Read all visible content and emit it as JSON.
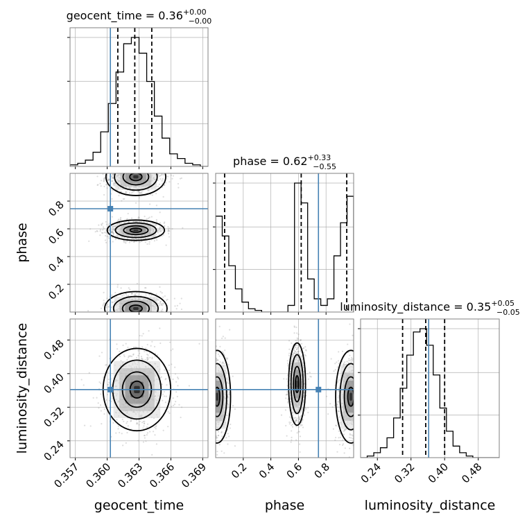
{
  "chart_data": {
    "type": "corner",
    "parameters": [
      {
        "key": "geocent_time",
        "label": "geocent_time",
        "title": {
          "prefix": "geocent_time = ",
          "median": "0.36",
          "plus": "+0.00",
          "minus": "−0.00"
        },
        "range": [
          0.3565,
          0.3695
        ],
        "ticks": [
          0.357,
          0.36,
          0.363,
          0.366,
          0.369
        ],
        "tick_labels": [
          "0.357",
          "0.360",
          "0.363",
          "0.366",
          "0.369"
        ],
        "truth": 0.3603,
        "quantiles": [
          0.361,
          0.3626,
          0.3642
        ],
        "hist_counts": [
          1,
          2,
          4,
          9,
          22,
          40,
          60,
          78,
          82,
          72,
          54,
          32,
          18,
          8,
          5,
          2,
          1,
          0
        ]
      },
      {
        "key": "phase",
        "label": "phase",
        "title": {
          "prefix": "phase = ",
          "median": "0.62",
          "plus": "+0.33",
          "minus": "−0.55"
        },
        "range": [
          0.0,
          1.0
        ],
        "ticks": [
          0.2,
          0.4,
          0.6,
          0.8
        ],
        "tick_labels": [
          "0.2",
          "0.4",
          "0.6",
          "0.8"
        ],
        "truth": 0.745,
        "quantiles": [
          0.065,
          0.62,
          0.95
        ],
        "hist_counts": [
          58,
          46,
          28,
          14,
          6,
          2,
          1,
          0,
          0,
          0,
          0,
          4,
          78,
          66,
          20,
          8,
          4,
          8,
          34,
          54,
          70
        ]
      },
      {
        "key": "luminosity_distance",
        "label": "luminosity_distance",
        "title": {
          "prefix": "luminosity_distance = ",
          "median": "0.35",
          "plus": "+0.05",
          "minus": "−0.05"
        },
        "range": [
          0.2,
          0.53
        ],
        "ticks": [
          0.24,
          0.32,
          0.4,
          0.48
        ],
        "tick_labels": [
          "0.24",
          "0.32",
          "0.40",
          "0.48"
        ],
        "truth": 0.362,
        "quantiles": [
          0.3,
          0.355,
          0.4
        ],
        "hist_counts": [
          0,
          1,
          3,
          6,
          12,
          24,
          42,
          62,
          76,
          78,
          68,
          50,
          30,
          16,
          7,
          3,
          1,
          0,
          0,
          0,
          0
        ]
      }
    ],
    "pair_regions": [
      {
        "x": "geocent_time",
        "y": "phase",
        "blobs": [
          {
            "cx": 0.3627,
            "cy": 0.975,
            "sx": 0.00115,
            "sy": 0.055,
            "weight": 1.0
          },
          {
            "cx": 0.3627,
            "cy": 0.59,
            "sx": 0.0011,
            "sy": 0.03,
            "weight": 1.15
          },
          {
            "cx": 0.3627,
            "cy": 0.025,
            "sx": 0.0012,
            "sy": 0.05,
            "weight": 0.9
          }
        ]
      },
      {
        "x": "geocent_time",
        "y": "luminosity_distance",
        "blobs": [
          {
            "cx": 0.3628,
            "cy": 0.362,
            "sx": 0.0013,
            "sy": 0.04,
            "weight": 1.0
          }
        ]
      },
      {
        "x": "phase",
        "y": "luminosity_distance",
        "blobs": [
          {
            "cx": 0.01,
            "cy": 0.345,
            "sx": 0.04,
            "sy": 0.045,
            "weight": 0.8
          },
          {
            "cx": 0.59,
            "cy": 0.375,
            "sx": 0.025,
            "sy": 0.04,
            "weight": 1.1
          },
          {
            "cx": 0.98,
            "cy": 0.345,
            "sx": 0.045,
            "sy": 0.045,
            "weight": 0.85
          }
        ]
      }
    ],
    "colors": {
      "truth": "#4682b4",
      "hist": "#000000",
      "scatter": "#9e9e9e",
      "grid": "#b0b0b0"
    }
  }
}
